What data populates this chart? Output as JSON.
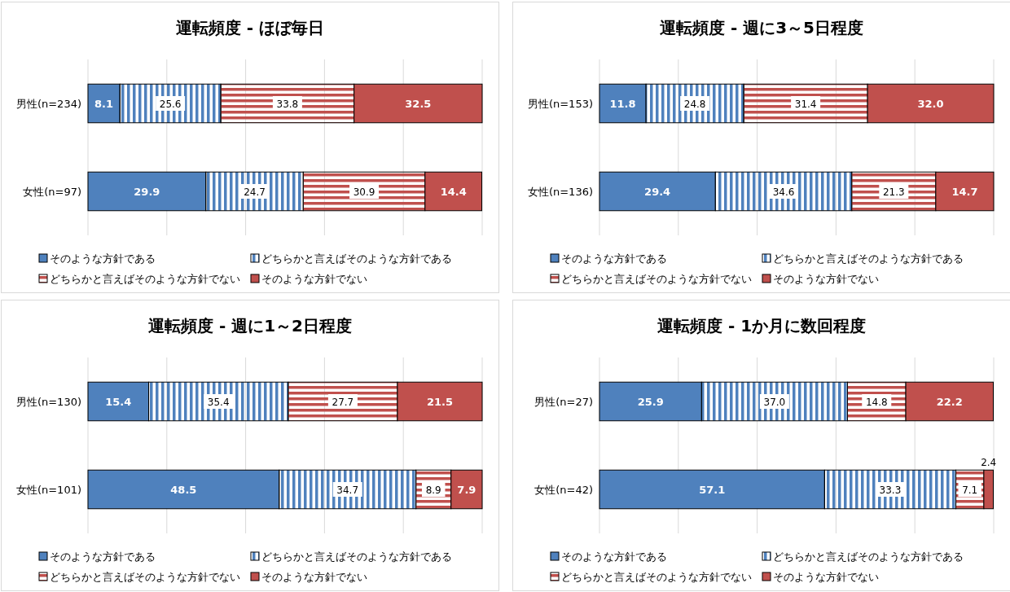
{
  "chart_data": [
    {
      "type": "bar",
      "orientation": "horizontal",
      "stacked": true,
      "title": "運転頻度 - ほぼ毎日",
      "categories": [
        "男性(n=234)",
        "女性(n=97)"
      ],
      "xlim": [
        0,
        100
      ],
      "xticks": [
        {
          "value": 0,
          "label": null
        },
        {
          "value": 20,
          "label": null
        },
        {
          "value": 40,
          "label": null
        },
        {
          "value": 60,
          "label": null
        },
        {
          "value": 80,
          "label": null
        },
        {
          "value": 100,
          "label": null
        }
      ],
      "tick_labels": "y",
      "grid": "x",
      "legend": "bottom",
      "series": [
        {
          "name": "そのような方針である",
          "color": "#4f81bd",
          "values": [
            8.1,
            29.9
          ],
          "value_labels": [
            "8.1",
            "29.9"
          ]
        },
        {
          "name": "どちらかと言えばそのような方針である",
          "color": "#4f81bd",
          "values": [
            25.6,
            24.7
          ],
          "value_labels": [
            "25.6",
            "24.7"
          ]
        },
        {
          "name": "どちらかと言えばそのような方針でない",
          "color": "#c0504d",
          "values": [
            33.8,
            30.9
          ],
          "value_labels": [
            "33.8",
            "30.9"
          ]
        },
        {
          "name": "そのような方針でない",
          "color": "#c0504d",
          "values": [
            32.5,
            14.4
          ],
          "value_labels": [
            "32.5",
            "14.4"
          ]
        }
      ]
    },
    {
      "type": "bar",
      "orientation": "horizontal",
      "stacked": true,
      "title": "運転頻度 - 週に3～5日程度",
      "categories": [
        "男性(n=153)",
        "女性(n=136)"
      ],
      "xlim": [
        0,
        100
      ],
      "xticks": [
        {
          "value": 0,
          "label": null
        },
        {
          "value": 20,
          "label": null
        },
        {
          "value": 40,
          "label": null
        },
        {
          "value": 60,
          "label": null
        },
        {
          "value": 80,
          "label": null
        },
        {
          "value": 100,
          "label": null
        }
      ],
      "tick_labels": "y",
      "grid": "x",
      "legend": "bottom",
      "series": [
        {
          "name": "そのような方針である",
          "color": "#4f81bd",
          "values": [
            11.8,
            29.4
          ],
          "value_labels": [
            "11.8",
            "29.4"
          ]
        },
        {
          "name": "どちらかと言えばそのような方針である",
          "color": "#4f81bd",
          "values": [
            24.8,
            34.6
          ],
          "value_labels": [
            "24.8",
            "34.6"
          ]
        },
        {
          "name": "どちらかと言えばそのような方針でない",
          "color": "#c0504d",
          "values": [
            31.4,
            21.3
          ],
          "value_labels": [
            "31.4",
            "21.3"
          ]
        },
        {
          "name": "そのような方針でない",
          "color": "#c0504d",
          "values": [
            32.0,
            14.7
          ],
          "value_labels": [
            "32.0",
            "14.7"
          ]
        }
      ]
    },
    {
      "type": "bar",
      "orientation": "horizontal",
      "stacked": true,
      "title": "運転頻度 - 週に1～2日程度",
      "categories": [
        "男性(n=130)",
        "女性(n=101)"
      ],
      "xlim": [
        0,
        100
      ],
      "xticks": [
        {
          "value": 0,
          "label": null
        },
        {
          "value": 20,
          "label": null
        },
        {
          "value": 40,
          "label": null
        },
        {
          "value": 60,
          "label": null
        },
        {
          "value": 80,
          "label": null
        },
        {
          "value": 100,
          "label": null
        }
      ],
      "tick_labels": "y",
      "grid": "x",
      "legend": "bottom",
      "series": [
        {
          "name": "そのような方針である",
          "color": "#4f81bd",
          "values": [
            15.4,
            48.5
          ],
          "value_labels": [
            "15.4",
            "48.5"
          ]
        },
        {
          "name": "どちらかと言えばそのような方針である",
          "color": "#4f81bd",
          "values": [
            35.4,
            34.7
          ],
          "value_labels": [
            "35.4",
            "34.7"
          ]
        },
        {
          "name": "どちらかと言えばそのような方針でない",
          "color": "#c0504d",
          "values": [
            27.7,
            8.9
          ],
          "value_labels": [
            "27.7",
            "8.9"
          ]
        },
        {
          "name": "そのような方針でない",
          "color": "#c0504d",
          "values": [
            21.5,
            7.9
          ],
          "value_labels": [
            "21.5",
            "7.9"
          ]
        }
      ]
    },
    {
      "type": "bar",
      "orientation": "horizontal",
      "stacked": true,
      "title": "運転頻度 - 1か月に数回程度",
      "categories": [
        "男性(n=27)",
        "女性(n=42)"
      ],
      "xlim": [
        0,
        100
      ],
      "xticks": [
        {
          "value": 0,
          "label": null
        },
        {
          "value": 20,
          "label": null
        },
        {
          "value": 40,
          "label": null
        },
        {
          "value": 60,
          "label": null
        },
        {
          "value": 80,
          "label": null
        },
        {
          "value": 100,
          "label": null
        }
      ],
      "tick_labels": "y",
      "grid": "x",
      "legend": "bottom",
      "series": [
        {
          "name": "そのような方針である",
          "color": "#4f81bd",
          "values": [
            25.9,
            57.1
          ],
          "value_labels": [
            "25.9",
            "57.1"
          ]
        },
        {
          "name": "どちらかと言えばそのような方針である",
          "color": "#4f81bd",
          "values": [
            37.0,
            33.3
          ],
          "value_labels": [
            "37.0",
            "33.3"
          ]
        },
        {
          "name": "どちらかと言えばそのような方針でない",
          "color": "#c0504d",
          "values": [
            14.8,
            7.1
          ],
          "value_labels": [
            "14.8",
            "7.1"
          ]
        },
        {
          "name": "そのような方針でない",
          "color": "#c0504d",
          "values": [
            22.2,
            2.4
          ],
          "value_labels": [
            "22.2",
            "2.4"
          ]
        }
      ]
    }
  ]
}
